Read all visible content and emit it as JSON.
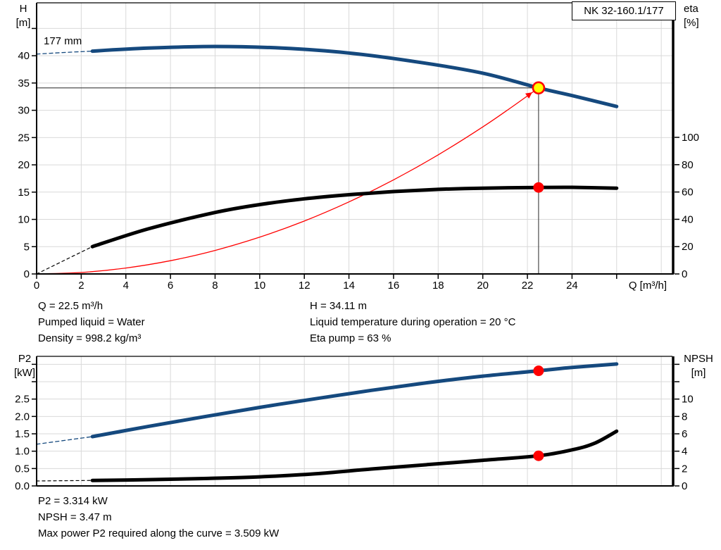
{
  "colors": {
    "curve_blue": "#15497e",
    "curve_black": "#000000",
    "curve_red": "#ff0000",
    "marker_yellow": "#ffff00",
    "gridline": "#d9d9d9",
    "duty_line": "#3a3a3a",
    "frame": "#000000"
  },
  "top_results": {
    "col1": [
      "Q = 22.5 m³/h",
      "Pumped liquid = Water",
      "Density = 998.2 kg/m³"
    ],
    "col2": [
      "H = 34.11 m",
      "Liquid temperature during operation = 20 °C",
      "Eta pump = 63 %"
    ]
  },
  "bottom_results": [
    "P2 = 3.314 kW",
    "NPSH = 3.47 m",
    "Max power P2 required along the curve = 3.509 kW"
  ],
  "chart_data": [
    {
      "type": "line",
      "title": "NK 32-160.1/177",
      "impeller_label": "177 mm",
      "x_axis": {
        "label": "Q [m³/h]",
        "min": 0,
        "max": 28.5,
        "ticks": [
          {
            "v": 0,
            "t": "0"
          },
          {
            "v": 2,
            "t": "2"
          },
          {
            "v": 4,
            "t": "4"
          },
          {
            "v": 6,
            "t": "6"
          },
          {
            "v": 8,
            "t": "8"
          },
          {
            "v": 10,
            "t": "10"
          },
          {
            "v": 12,
            "t": "12"
          },
          {
            "v": 14,
            "t": "14"
          },
          {
            "v": 16,
            "t": "16"
          },
          {
            "v": 18,
            "t": "18"
          },
          {
            "v": 20,
            "t": "20"
          },
          {
            "v": 22,
            "t": "22"
          },
          {
            "v": 24,
            "t": "24"
          },
          {
            "v": 26,
            "t": ""
          }
        ],
        "grid": [
          2,
          4,
          6,
          8,
          10,
          12,
          14,
          16,
          18,
          20,
          22,
          24,
          26,
          28
        ]
      },
      "y_left": {
        "label": "H\n[m]",
        "min": 0,
        "max": 49.7,
        "ticks": [
          {
            "v": 0,
            "t": "0"
          },
          {
            "v": 5,
            "t": "5"
          },
          {
            "v": 10,
            "t": "10"
          },
          {
            "v": 15,
            "t": "15"
          },
          {
            "v": 20,
            "t": "20"
          },
          {
            "v": 25,
            "t": "25"
          },
          {
            "v": 30,
            "t": "30"
          },
          {
            "v": 35,
            "t": "35"
          },
          {
            "v": 40,
            "t": "40"
          },
          {
            "v": 45,
            "t": ""
          }
        ],
        "grid": [
          5,
          10,
          15,
          20,
          25,
          30,
          35,
          40,
          45
        ]
      },
      "y_right": {
        "label": "eta\n[%]",
        "min": 0,
        "max": 198.5,
        "ticks": [
          {
            "v": 0,
            "t": "0"
          },
          {
            "v": 20,
            "t": "20"
          },
          {
            "v": 40,
            "t": "40"
          },
          {
            "v": 60,
            "t": "60"
          },
          {
            "v": 80,
            "t": "80"
          },
          {
            "v": 100,
            "t": "100"
          }
        ]
      },
      "duty_point": {
        "q": 22.5,
        "h": 34.11,
        "eta": 63
      },
      "duty_lines": {
        "h_value": 34.11,
        "q_value": 22.5
      },
      "series": [
        {
          "name": "system-curve",
          "axis": "left",
          "color": "#ff0000",
          "width": 1.3,
          "arrow": true,
          "points": [
            [
              0,
              0
            ],
            [
              2,
              0.27
            ],
            [
              4,
              1.08
            ],
            [
              6,
              2.43
            ],
            [
              8,
              4.31
            ],
            [
              10,
              6.74
            ],
            [
              12,
              9.7
            ],
            [
              14,
              13.21
            ],
            [
              16,
              17.25
            ],
            [
              18,
              21.83
            ],
            [
              20,
              26.95
            ],
            [
              21.3,
              30.6
            ],
            [
              22.5,
              34.11
            ]
          ]
        },
        {
          "name": "head-curve-lead",
          "axis": "left",
          "color": "#15497e",
          "width": 1.3,
          "dash": "5 4",
          "points": [
            [
              0,
              40.3
            ],
            [
              1.25,
              40.6
            ],
            [
              2.5,
              40.85
            ]
          ]
        },
        {
          "name": "head-curve",
          "axis": "left",
          "color": "#15497e",
          "width": 5,
          "points": [
            [
              2.5,
              40.85
            ],
            [
              5,
              41.4
            ],
            [
              8,
              41.7
            ],
            [
              11,
              41.4
            ],
            [
              14,
              40.5
            ],
            [
              17,
              38.9
            ],
            [
              20,
              36.8
            ],
            [
              22.5,
              34.11
            ],
            [
              24,
              32.7
            ],
            [
              26,
              30.7
            ]
          ]
        },
        {
          "name": "eta-curve-lead",
          "axis": "right",
          "color": "#000000",
          "width": 1.2,
          "dash": "4 4",
          "points": [
            [
              0,
              0
            ],
            [
              1.25,
              10
            ],
            [
              2.5,
              20
            ]
          ]
        },
        {
          "name": "eta-curve",
          "axis": "right",
          "color": "#000000",
          "width": 5,
          "points": [
            [
              2.5,
              20
            ],
            [
              5,
              33
            ],
            [
              8,
              45
            ],
            [
              10,
              50.8
            ],
            [
              12,
              55
            ],
            [
              14,
              58
            ],
            [
              16,
              60.3
            ],
            [
              18,
              61.9
            ],
            [
              20,
              62.8
            ],
            [
              22.5,
              63.3
            ],
            [
              24,
              63.4
            ],
            [
              26,
              62.8
            ]
          ]
        }
      ],
      "markers": [
        {
          "name": "duty-point-eta-dot",
          "axis": "right",
          "q": 22.5,
          "v": 63.3,
          "r": 7.5,
          "fill": "#ff0000"
        },
        {
          "name": "duty-point-head-marker",
          "axis": "left",
          "q": 22.5,
          "v": 34.11,
          "r": 8,
          "fill": "#ffff00",
          "stroke": "#ff0000",
          "stroke_width": 2.6
        }
      ]
    },
    {
      "type": "line",
      "x_axis": {
        "label": "",
        "min": 0,
        "max": 28.5,
        "ticks": [],
        "grid": [
          2,
          4,
          6,
          8,
          10,
          12,
          14,
          16,
          18,
          20,
          22,
          24,
          26,
          28
        ]
      },
      "y_left": {
        "label": "P2\n[kW]",
        "min": 0,
        "max": 3.73,
        "ticks": [
          {
            "v": 0,
            "t": "0.0"
          },
          {
            "v": 0.5,
            "t": "0.5"
          },
          {
            "v": 1,
            "t": "1.0"
          },
          {
            "v": 1.5,
            "t": "1.5"
          },
          {
            "v": 2,
            "t": "2.0"
          },
          {
            "v": 2.5,
            "t": "2.5"
          },
          {
            "v": 3,
            "t": ""
          },
          {
            "v": 3.5,
            "t": ""
          }
        ],
        "grid": [
          0.5,
          1,
          1.5,
          2,
          2.5,
          3,
          3.5
        ]
      },
      "y_right": {
        "label": "NPSH\n[m]",
        "min": 0,
        "max": 14.92,
        "ticks": [
          {
            "v": 0,
            "t": "0"
          },
          {
            "v": 2,
            "t": "2"
          },
          {
            "v": 4,
            "t": "4"
          },
          {
            "v": 6,
            "t": "6"
          },
          {
            "v": 8,
            "t": "8"
          },
          {
            "v": 10,
            "t": "10"
          },
          {
            "v": 12,
            "t": ""
          },
          {
            "v": 14,
            "t": ""
          }
        ]
      },
      "duty_point": {
        "q": 22.5,
        "p2": 3.314,
        "npsh": 3.47
      },
      "series": [
        {
          "name": "p2-curve-lead",
          "axis": "left",
          "color": "#15497e",
          "width": 1.3,
          "dash": "5 4",
          "points": [
            [
              0,
              1.2
            ],
            [
              1.25,
              1.31
            ],
            [
              2.5,
              1.42
            ]
          ]
        },
        {
          "name": "p2-curve",
          "axis": "left",
          "color": "#15497e",
          "width": 5,
          "points": [
            [
              2.5,
              1.42
            ],
            [
              5,
              1.71
            ],
            [
              7.5,
              1.99
            ],
            [
              10,
              2.26
            ],
            [
              12.5,
              2.51
            ],
            [
              15,
              2.75
            ],
            [
              17.5,
              2.97
            ],
            [
              20,
              3.16
            ],
            [
              22.5,
              3.314
            ],
            [
              24,
              3.41
            ],
            [
              26,
              3.509
            ]
          ]
        },
        {
          "name": "npsh-curve-lead",
          "axis": "right",
          "color": "#000000",
          "width": 1.2,
          "dash": "4 4",
          "points": [
            [
              0,
              0.57
            ],
            [
              1.25,
              0.6
            ],
            [
              2.5,
              0.63
            ]
          ]
        },
        {
          "name": "npsh-curve",
          "axis": "right",
          "color": "#000000",
          "width": 5,
          "points": [
            [
              2.5,
              0.63
            ],
            [
              5,
              0.72
            ],
            [
              7.5,
              0.85
            ],
            [
              10,
              1.05
            ],
            [
              12.5,
              1.4
            ],
            [
              15,
              1.95
            ],
            [
              17.5,
              2.45
            ],
            [
              20,
              2.95
            ],
            [
              22.5,
              3.47
            ],
            [
              24,
              4.15
            ],
            [
              25,
              4.9
            ],
            [
              26,
              6.3
            ]
          ]
        }
      ],
      "markers": [
        {
          "name": "duty-point-p2-dot",
          "axis": "left",
          "q": 22.5,
          "v": 3.314,
          "r": 7.5,
          "fill": "#ff0000"
        },
        {
          "name": "duty-point-npsh-dot",
          "axis": "right",
          "q": 22.5,
          "v": 3.47,
          "r": 7.5,
          "fill": "#ff0000"
        }
      ]
    }
  ]
}
